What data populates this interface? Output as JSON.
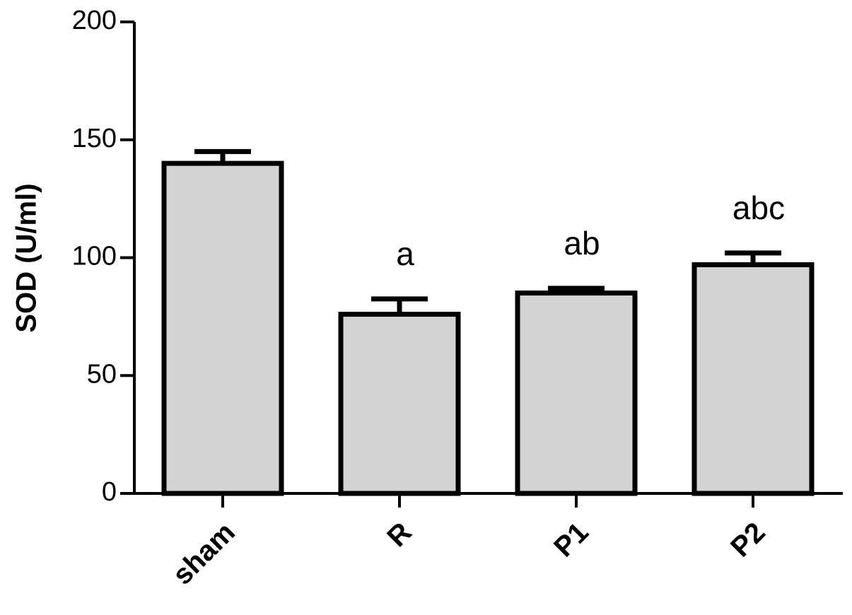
{
  "chart_data": {
    "type": "bar",
    "ylabel": "SOD (U/ml)",
    "categories": [
      "sham",
      "R",
      "P1",
      "P2"
    ],
    "values": [
      140,
      76,
      85,
      97
    ],
    "errors": [
      5,
      6.5,
      2,
      5
    ],
    "significance": [
      null,
      "a",
      "ab",
      "abc"
    ],
    "color": "#d3d3d3",
    "ylim": [
      0,
      200
    ],
    "yticks": [
      0,
      50,
      100,
      150,
      200
    ]
  }
}
